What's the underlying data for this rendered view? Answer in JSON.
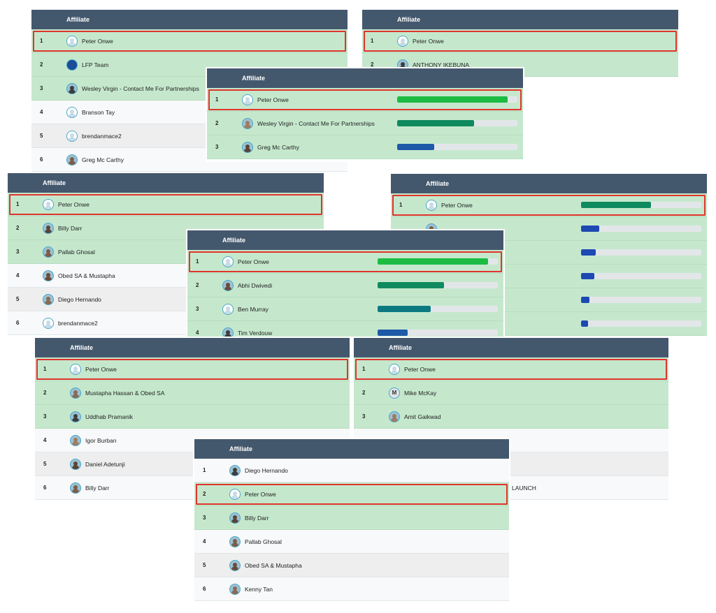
{
  "header_label": "Affiliate",
  "colors": {
    "header": "#44586d",
    "row_green": "#c5e8cd",
    "highlight": "#e0342b",
    "bar_bright_green": "#1cbc43",
    "bar_teal_green": "#0f8a5f",
    "bar_teal": "#0b7a80",
    "bar_blue": "#1f5aa8",
    "bar_navy": "#1d49b2"
  },
  "boards": [
    {
      "id": "b1",
      "rows": [
        {
          "rank": "1",
          "name": "Peter Onwe",
          "avatar": "placeholder"
        },
        {
          "rank": "2",
          "name": "LFP Team",
          "avatar": "logo"
        },
        {
          "rank": "3",
          "name": "Wesley Virgin - Contact Me For Partnerships",
          "avatar": "photo"
        },
        {
          "rank": "4",
          "name": "Branson Tay",
          "avatar": "placeholder"
        },
        {
          "rank": "5",
          "name": "brendanmace2",
          "avatar": "placeholder"
        },
        {
          "rank": "6",
          "name": "Greg Mc Carthy",
          "avatar": "photo"
        }
      ]
    },
    {
      "id": "b2",
      "rows": [
        {
          "rank": "1",
          "name": "Peter Onwe",
          "avatar": "placeholder"
        },
        {
          "rank": "2",
          "name": "ANTHONY IKEBUNA",
          "avatar": "photo"
        }
      ]
    },
    {
      "id": "b3",
      "rows": [
        {
          "rank": "1",
          "name": "Peter Onwe",
          "avatar": "placeholder",
          "bar": 0.92,
          "bar_color": "#1cbc43"
        },
        {
          "rank": "2",
          "name": "Wesley Virgin - Contact Me For Partnerships",
          "avatar": "photo",
          "bar": 0.64,
          "bar_color": "#0f8a5f"
        },
        {
          "rank": "3",
          "name": "Greg Mc Carthy",
          "avatar": "photo",
          "bar": 0.31,
          "bar_color": "#1f5aa8"
        }
      ]
    },
    {
      "id": "b4",
      "rows": [
        {
          "rank": "1",
          "name": "Peter Onwe",
          "avatar": "placeholder"
        },
        {
          "rank": "2",
          "name": "Billy Darr",
          "avatar": "photo"
        },
        {
          "rank": "3",
          "name": "Pallab Ghosal",
          "avatar": "photo"
        },
        {
          "rank": "4",
          "name": "Obed SA & Mustapha",
          "avatar": "photo"
        },
        {
          "rank": "5",
          "name": "Diego Hernando",
          "avatar": "photo"
        },
        {
          "rank": "6",
          "name": "brendanmace2",
          "avatar": "placeholder"
        }
      ]
    },
    {
      "id": "b5",
      "rows": [
        {
          "rank": "1",
          "name": "Peter Onwe",
          "avatar": "placeholder",
          "bar": 0.58,
          "bar_color": "#0f8a5f"
        },
        {
          "rank": "",
          "name": "",
          "avatar": "photo",
          "bar": 0.15,
          "bar_color": "#1d49b2"
        },
        {
          "rank": "",
          "name": "",
          "avatar": "none",
          "bar": 0.12,
          "bar_color": "#1d49b2"
        },
        {
          "rank": "",
          "name": "",
          "avatar": "none",
          "bar": 0.11,
          "bar_color": "#1d49b2"
        },
        {
          "rank": "",
          "name": "",
          "avatar": "none",
          "bar": 0.07,
          "bar_color": "#1d49b2"
        },
        {
          "rank": "",
          "name": "",
          "avatar": "none",
          "bar": 0.06,
          "bar_color": "#1d49b2"
        }
      ]
    },
    {
      "id": "b6",
      "rows": [
        {
          "rank": "1",
          "name": "Peter Onwe",
          "avatar": "placeholder",
          "bar": 0.92,
          "bar_color": "#1cbc43"
        },
        {
          "rank": "2",
          "name": "Abhi Dwivedi",
          "avatar": "photo",
          "bar": 0.55,
          "bar_color": "#0f8a5f"
        },
        {
          "rank": "3",
          "name": "Ben Murray",
          "avatar": "placeholder",
          "bar": 0.44,
          "bar_color": "#0b7a80"
        },
        {
          "rank": "4",
          "name": "Tim Verdouw",
          "avatar": "photo",
          "bar": 0.25,
          "bar_color": "#1f5aa8"
        }
      ]
    },
    {
      "id": "b7",
      "rows": [
        {
          "rank": "1",
          "name": "Peter Onwe",
          "avatar": "placeholder"
        },
        {
          "rank": "2",
          "name": "Mustapha Hassan & Obed SA",
          "avatar": "photo"
        },
        {
          "rank": "3",
          "name": "Uddhab Pramanik",
          "avatar": "photo"
        },
        {
          "rank": "4",
          "name": "Igor Burban",
          "avatar": "photo"
        },
        {
          "rank": "5",
          "name": "Daniel Adetunji",
          "avatar": "photo"
        },
        {
          "rank": "6",
          "name": "Billy Darr",
          "avatar": "photo"
        }
      ]
    },
    {
      "id": "b8",
      "rows": [
        {
          "rank": "1",
          "name": "Peter Onwe",
          "avatar": "placeholder"
        },
        {
          "rank": "2",
          "name": "Mike McKay",
          "avatar": "initial",
          "initial": "M"
        },
        {
          "rank": "3",
          "name": "Amit Gaikwad",
          "avatar": "photo"
        },
        {
          "rank": "",
          "name": "",
          "avatar": "none"
        },
        {
          "rank": "",
          "name": "",
          "avatar": "none"
        },
        {
          "rank": "",
          "name": "LAUNCH",
          "avatar": "none"
        }
      ]
    },
    {
      "id": "b9",
      "rows": [
        {
          "rank": "1",
          "name": "Diego Hernando",
          "avatar": "photo"
        },
        {
          "rank": "2",
          "name": "Peter Onwe",
          "avatar": "placeholder"
        },
        {
          "rank": "3",
          "name": "Billy Darr",
          "avatar": "photo"
        },
        {
          "rank": "4",
          "name": "Pallab Ghosal",
          "avatar": "photo"
        },
        {
          "rank": "5",
          "name": "Obed SA & Mustapha",
          "avatar": "photo"
        },
        {
          "rank": "6",
          "name": "Kenny Tan",
          "avatar": "photo"
        }
      ]
    }
  ]
}
